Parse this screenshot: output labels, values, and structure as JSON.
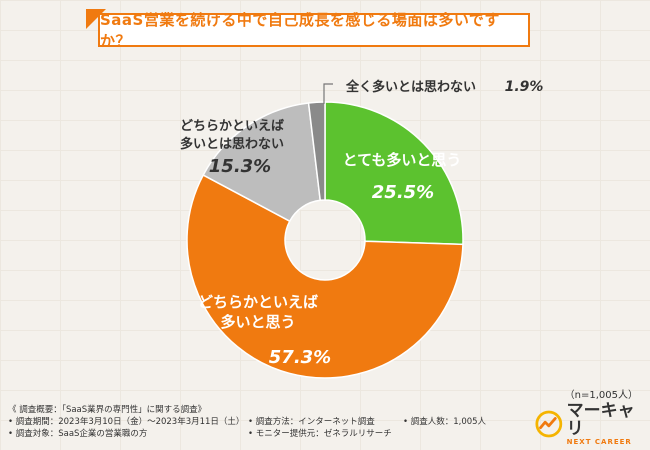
{
  "title": "SaaS営業を続ける中で自己成長を感じる場面は多いですか？",
  "chart_data": {
    "type": "pie",
    "donut": true,
    "slices": [
      {
        "label_lines": [
          "とても多いと思う"
        ],
        "value": 25.5,
        "value_label": "25.5%",
        "color": "#5cc22f"
      },
      {
        "label_lines": [
          "どちらかといえば",
          "多いと思う"
        ],
        "value": 57.3,
        "value_label": "57.3%",
        "color": "#f07a10"
      },
      {
        "label_lines": [
          "どちらかといえば",
          "多いとは思わない"
        ],
        "value": 15.3,
        "value_label": "15.3%",
        "color": "#bdbdbd"
      },
      {
        "label_lines": [
          "全く多いとは思わない"
        ],
        "value": 1.9,
        "value_label": "1.9%",
        "color": "#8a8a8a"
      }
    ]
  },
  "sample_size": "（n=1,005人）",
  "notes": {
    "summary": "《 調査概要：「SaaS業界の専門性」に関する調査》",
    "period": "• 調査期間：2023年3月10日（金）〜2023年3月11日（土）",
    "method": "• 調査方法：インターネット調査",
    "count": "• 調査人数：1,005人",
    "target": "• 調査対象：SaaS企業の営業職の方",
    "provider": "• モニター提供元：ゼネラルリサーチ"
  },
  "logo": {
    "name": "マーキャリ",
    "sub": "NEXT CAREER",
    "icon": "career-growth-logo-icon"
  }
}
